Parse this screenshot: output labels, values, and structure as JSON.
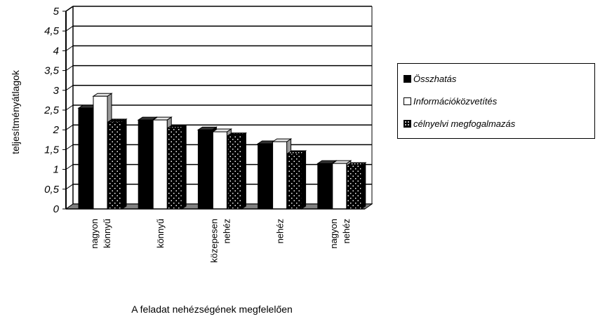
{
  "chart_data": {
    "type": "bar",
    "ylabel": "teljesítményátlagok",
    "xlabel": "A feladat nehézségének megfelelően",
    "ylim": [
      0,
      5
    ],
    "yticks": [
      "0",
      "0,5",
      "1",
      "1,5",
      "2",
      "2,5",
      "3",
      "3,5",
      "4",
      "4,5",
      "5"
    ],
    "categories": [
      [
        "nagyon",
        "könnyű"
      ],
      [
        "könnyű"
      ],
      [
        "közepesen",
        "nehéz"
      ],
      [
        "nehéz"
      ],
      [
        "nagyon",
        "nehéz"
      ]
    ],
    "series": [
      {
        "name": "Összhatás",
        "values": [
          2.55,
          2.25,
          2.0,
          1.65,
          1.15
        ],
        "color": "#000000",
        "pattern": "black"
      },
      {
        "name": "Információközvetítés",
        "values": [
          2.85,
          2.25,
          1.95,
          1.7,
          1.15
        ],
        "color": "#ffffff",
        "pattern": "white"
      },
      {
        "name": "célnyelvi megfogalmazás",
        "values": [
          2.2,
          2.05,
          1.85,
          1.4,
          1.1
        ],
        "color": "#000000",
        "pattern": "dotted"
      }
    ],
    "grid": true,
    "legend_position": "right"
  }
}
